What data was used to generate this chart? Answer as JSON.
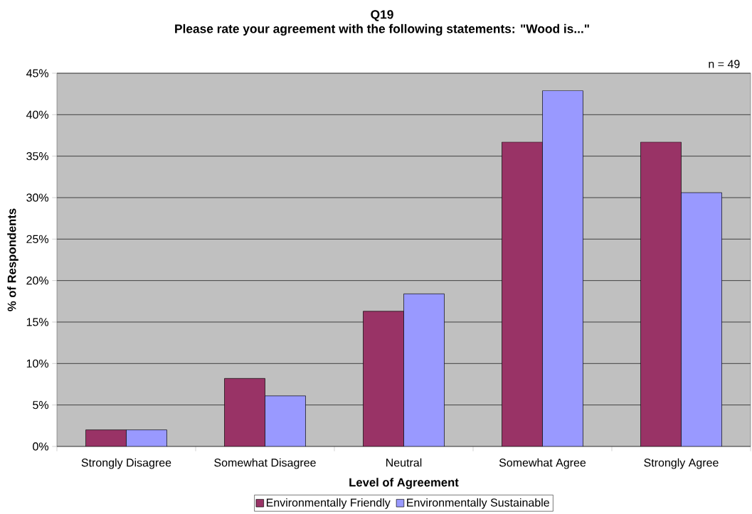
{
  "chart_data": {
    "type": "bar",
    "title": "Q19",
    "subtitle": "Please rate your agreement with the following statements: \"Wood is...\"",
    "xlabel": "Level of Agreement",
    "ylabel": "% of Respondents",
    "annotations": [
      "n = 49"
    ],
    "categories": [
      "Strongly Disagree",
      "Somewhat Disagree",
      "Neutral",
      "Somewhat Agree",
      "Strongly Agree"
    ],
    "series": [
      {
        "name": "Environmentally Friendly",
        "color": "#993366",
        "values": [
          2.0,
          8.2,
          16.3,
          36.7,
          36.7
        ]
      },
      {
        "name": "Environmentally Sustainable",
        "color": "#9999ff",
        "values": [
          2.0,
          6.1,
          18.4,
          42.9,
          30.6
        ]
      }
    ],
    "ylim": [
      0,
      45
    ],
    "yticks": [
      {
        "value": 0,
        "label": "0%"
      },
      {
        "value": 5,
        "label": "5%"
      },
      {
        "value": 10,
        "label": "10%"
      },
      {
        "value": 15,
        "label": "15%"
      },
      {
        "value": 20,
        "label": "20%"
      },
      {
        "value": 25,
        "label": "25%"
      },
      {
        "value": 30,
        "label": "30%"
      },
      {
        "value": 35,
        "label": "35%"
      },
      {
        "value": 40,
        "label": "40%"
      },
      {
        "value": 45,
        "label": "45%"
      }
    ],
    "grid": "y",
    "legend": "bottom"
  }
}
